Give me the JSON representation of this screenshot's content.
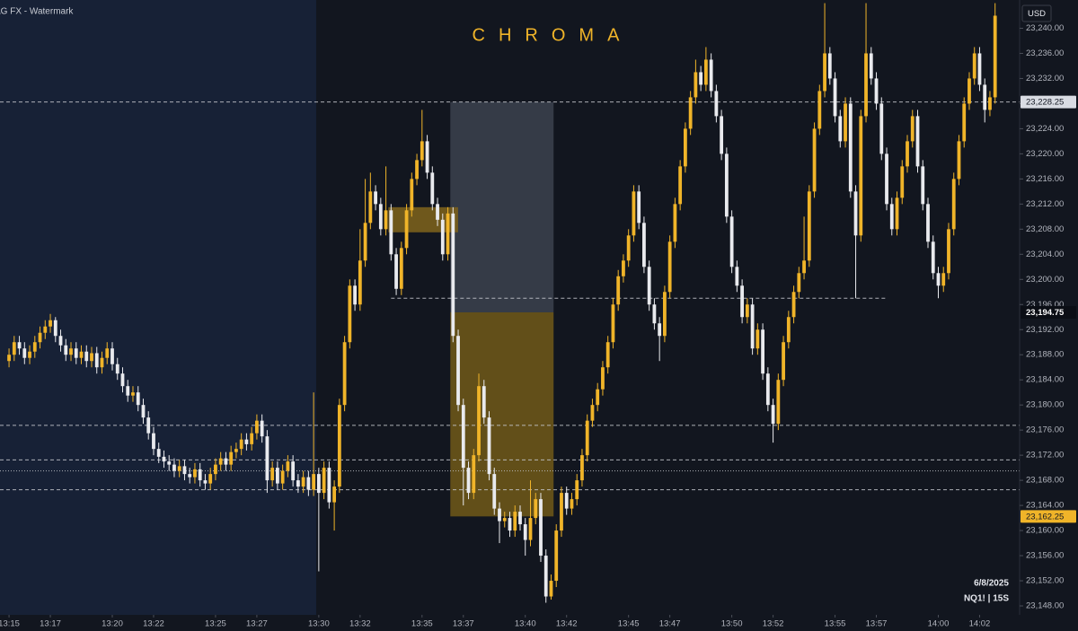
{
  "chart_data": {
    "type": "candlestick",
    "title": "CHROMA",
    "watermark": "AG FX - Watermark",
    "currency": "USD",
    "date": "6/8/2025",
    "symbol": "NQ1! | 15S",
    "bull_color": "#f0b429",
    "bear_color": "#e9eaee",
    "xlim": [
      -1.75,
      195.75
    ],
    "ylim": [
      23144,
      23244.5
    ],
    "xticks": [
      {
        "value": 0,
        "label": "13:15"
      },
      {
        "value": 8,
        "label": "13:17"
      },
      {
        "value": 20,
        "label": "13:20"
      },
      {
        "value": 28,
        "label": "13:22"
      },
      {
        "value": 40,
        "label": "13:25"
      },
      {
        "value": 48,
        "label": "13:27"
      },
      {
        "value": 60,
        "label": "13:30"
      },
      {
        "value": 68,
        "label": "13:32"
      },
      {
        "value": 80,
        "label": "13:35"
      },
      {
        "value": 88,
        "label": "13:37"
      },
      {
        "value": 100,
        "label": "13:40"
      },
      {
        "value": 108,
        "label": "13:42"
      },
      {
        "value": 120,
        "label": "13:45"
      },
      {
        "value": 128,
        "label": "13:47"
      },
      {
        "value": 140,
        "label": "13:50"
      },
      {
        "value": 148,
        "label": "13:52"
      },
      {
        "value": 160,
        "label": "13:55"
      },
      {
        "value": 168,
        "label": "13:57"
      },
      {
        "value": 180,
        "label": "14:00"
      },
      {
        "value": 188,
        "label": "14:02"
      }
    ],
    "yticks": [
      {
        "value": 23148,
        "label": "23,148.00"
      },
      {
        "value": 23152,
        "label": "23,152.00"
      },
      {
        "value": 23156,
        "label": "23,156.00"
      },
      {
        "value": 23160,
        "label": "23,160.00"
      },
      {
        "value": 23164,
        "label": "23,164.00"
      },
      {
        "value": 23168,
        "label": "23,168.00"
      },
      {
        "value": 23172,
        "label": "23,172.00"
      },
      {
        "value": 23176,
        "label": "23,176.00"
      },
      {
        "value": 23180,
        "label": "23,180.00"
      },
      {
        "value": 23184,
        "label": "23,184.00"
      },
      {
        "value": 23188,
        "label": "23,188.00"
      },
      {
        "value": 23192,
        "label": "23,192.00"
      },
      {
        "value": 23196,
        "label": "23,196.00"
      },
      {
        "value": 23200,
        "label": "23,200.00"
      },
      {
        "value": 23204,
        "label": "23,204.00"
      },
      {
        "value": 23208,
        "label": "23,208.00"
      },
      {
        "value": 23212,
        "label": "23,212.00"
      },
      {
        "value": 23216,
        "label": "23,216.00"
      },
      {
        "value": 23220,
        "label": "23,220.00"
      },
      {
        "value": 23224,
        "label": "23,224.00"
      },
      {
        "value": 23228,
        "label": "23,228.00"
      },
      {
        "value": 23232,
        "label": "23,232.00"
      },
      {
        "value": 23236,
        "label": "23,236.00"
      },
      {
        "value": 23240,
        "label": "23,240.00"
      }
    ],
    "session_shade": {
      "end": 59.5,
      "color": "#172136"
    },
    "zones": [
      {
        "from": 23228.25,
        "to": 23194.75,
        "start": 86,
        "end": 106,
        "color": "#3a3f4b"
      },
      {
        "from": 23194.75,
        "to": 23162.25,
        "start": 86,
        "end": 106,
        "color": "#6b5518"
      },
      {
        "from": 23211.5,
        "to": 23207.5,
        "start": 74,
        "end": 87.5,
        "color": "#7a5f1c"
      }
    ],
    "levels": [
      {
        "value": 23228.25,
        "style": "dashed"
      },
      {
        "value": 23176.75,
        "style": "dashed"
      },
      {
        "value": 23171.25,
        "style": "dashed"
      },
      {
        "value": 23169.5,
        "style": "dotted"
      },
      {
        "value": 23166.5,
        "style": "dashed"
      },
      {
        "value": 23197,
        "style": "dashed",
        "start": 74,
        "end": 170
      }
    ],
    "price_labels": [
      {
        "value": 23228.25,
        "label": "23,228.25",
        "color": "#d9dce3"
      },
      {
        "value": 23194.75,
        "label": "23,194.75",
        "color": "#0b0e15"
      },
      {
        "value": 23162.25,
        "label": "23,162.25",
        "color": "#f0b429"
      }
    ],
    "open": [
      23187,
      23188,
      23190,
      23189,
      23187.5,
      23188.5,
      23190,
      23191.5,
      23192.5,
      23193.5,
      23191,
      23189.5,
      23188,
      23189,
      23187.5,
      23188.5,
      23187,
      23188.25,
      23186,
      23187.5,
      23189,
      23186.5,
      23185,
      23183,
      23181.5,
      23182,
      23180,
      23178,
      23175.5,
      23173,
      23171.75,
      23171,
      23170.5,
      23169.5,
      23170.25,
      23169,
      23168.5,
      23169.75,
      23168,
      23167.5,
      23169,
      23170.5,
      23171.5,
      23170.5,
      23172.5,
      23173,
      23174.5,
      23173.75,
      23175.5,
      23177.5,
      23175,
      23168,
      23170,
      23167.5,
      23169.5,
      23171,
      23168,
      23167,
      23168.5,
      23166.5,
      23169,
      23166,
      23170,
      23164.5,
      23167,
      23180,
      23190,
      23199,
      23196,
      23203,
      23209,
      23214,
      23212,
      23208,
      23211,
      23204,
      23198.5,
      23205,
      23211,
      23216,
      23219,
      23222,
      23217,
      23212,
      23209.5,
      23204,
      23210.5,
      23191,
      23180,
      23170,
      23166,
      23172,
      23183,
      23178,
      23169,
      23163.5,
      23161.5,
      23162,
      23160,
      23163,
      23161,
      23158.5,
      23162,
      23165,
      23156,
      23149.5,
      23152,
      23160,
      23166,
      23163.5,
      23165,
      23168,
      23172,
      23177.5,
      23180,
      23182.5,
      23186,
      23190,
      23196,
      23200.5,
      23203,
      23207,
      23214,
      23209,
      23202,
      23196,
      23193,
      23191,
      23198,
      23206,
      23212,
      23218,
      23224,
      23229,
      23233,
      23231,
      23235,
      23230,
      23226,
      23220,
      23210,
      23202,
      23199,
      23194,
      23196,
      23189,
      23192,
      23185,
      23180,
      23177,
      23184,
      23190,
      23194,
      23198,
      23201,
      23203,
      23214,
      23224,
      23230,
      23236,
      23232,
      23226,
      23222,
      23228,
      23214,
      23207,
      23226,
      23236,
      23232,
      23228,
      23220,
      23212,
      23208,
      23213,
      23218,
      23222,
      23226,
      23218,
      23212,
      23206,
      23201,
      23199,
      23201,
      23208,
      23216,
      23222,
      23228,
      23232,
      23236,
      23231,
      23227,
      23229
    ],
    "high": [
      23189,
      23191,
      23191,
      23190,
      23189.5,
      23191,
      23192.5,
      23193.5,
      23194.5,
      23194,
      23192,
      23190.5,
      23190,
      23190,
      23189.5,
      23189.5,
      23189.25,
      23189.25,
      23188.5,
      23190,
      23190,
      23187.5,
      23186,
      23184,
      23183,
      23183,
      23181,
      23179,
      23176.5,
      23174,
      23172.75,
      23172,
      23171.5,
      23171.25,
      23171.25,
      23170,
      23170.75,
      23170.75,
      23169,
      23170,
      23171.5,
      23172.5,
      23172.5,
      23173.5,
      23174,
      23175.5,
      23175.5,
      23176.5,
      23178.5,
      23178.5,
      23176,
      23171,
      23171,
      23170.5,
      23172,
      23172,
      23169,
      23169.5,
      23169.5,
      23182,
      23170,
      23171,
      23171,
      23168,
      23181,
      23191,
      23200,
      23200,
      23208,
      23216,
      23217,
      23215,
      23213,
      23218,
      23212,
      23205,
      23206,
      23212,
      23217,
      23220,
      23227,
      23223,
      23218,
      23213,
      23210.5,
      23211.5,
      23211.5,
      23192,
      23181,
      23171,
      23173,
      23185,
      23184,
      23179,
      23170,
      23164.5,
      23163,
      23163,
      23164,
      23164,
      23162,
      23168,
      23166,
      23166,
      23157,
      23153,
      23161,
      23167,
      23167,
      23166,
      23169,
      23173,
      23178.5,
      23181,
      23183.5,
      23187,
      23191,
      23197,
      23201.5,
      23204,
      23208,
      23215,
      23215,
      23210,
      23203,
      23197,
      23194,
      23199,
      23207,
      23213,
      23219,
      23225,
      23230,
      23235,
      23234,
      23237,
      23236,
      23231,
      23227,
      23221,
      23211,
      23203,
      23200,
      23197,
      23197,
      23193,
      23193,
      23186,
      23181,
      23185,
      23191,
      23195,
      23199,
      23202,
      23210,
      23215,
      23225,
      23231,
      23244,
      23237,
      23233,
      23227,
      23229,
      23229,
      23215,
      23227,
      23244,
      23237,
      23233,
      23229,
      23221,
      23213,
      23214,
      23219,
      23223,
      23227,
      23227,
      23219,
      23213,
      23207,
      23202,
      23202,
      23209,
      23217,
      23223,
      23229,
      23233,
      23237,
      23237,
      23232,
      23230,
      23244
    ],
    "low": [
      23186,
      23187,
      23188,
      23186.5,
      23186.5,
      23187.5,
      23189,
      23190.5,
      23191.5,
      23190,
      23188.5,
      23187,
      23187,
      23186.5,
      23186.5,
      23186,
      23186,
      23185,
      23185,
      23186.5,
      23185.5,
      23184,
      23182,
      23180.5,
      23180.5,
      23179,
      23177,
      23174.5,
      23172,
      23170.75,
      23170,
      23169.5,
      23168.5,
      23168.5,
      23168,
      23167.5,
      23167.5,
      23167,
      23166.5,
      23166.5,
      23168,
      23169.5,
      23169.5,
      23169.5,
      23171.5,
      23172,
      23172.75,
      23172.75,
      23174.5,
      23174,
      23166,
      23167,
      23166.5,
      23166.5,
      23168.5,
      23167,
      23166,
      23166,
      23165.5,
      23165.5,
      23153.5,
      23165,
      23163.5,
      23160,
      23166,
      23179,
      23189,
      23195,
      23195,
      23202,
      23208,
      23211,
      23207,
      23207,
      23203,
      23197.5,
      23197.5,
      23204,
      23210,
      23215,
      23218,
      23216,
      23211,
      23208.5,
      23203,
      23203,
      23190,
      23179,
      23164,
      23165,
      23165,
      23171,
      23177,
      23168,
      23162.5,
      23158,
      23160.5,
      23159,
      23159,
      23160,
      23156,
      23157.5,
      23161,
      23155,
      23148.5,
      23149,
      23151,
      23159,
      23162.5,
      23162.5,
      23164,
      23167,
      23171,
      23176.5,
      23179,
      23181.5,
      23185,
      23189,
      23195,
      23199.5,
      23202,
      23206,
      23208,
      23201,
      23195,
      23192,
      23187,
      23190,
      23197,
      23205,
      23211,
      23217,
      23223,
      23228,
      23230,
      23230,
      23229,
      23225,
      23219,
      23209,
      23201,
      23198,
      23193,
      23193,
      23188,
      23188,
      23184,
      23179,
      23174,
      23176,
      23183,
      23189,
      23193,
      23197,
      23200,
      23202,
      23213,
      23223,
      23229,
      23231,
      23225,
      23221,
      23221,
      23213,
      23197,
      23206,
      23225,
      23231,
      23227,
      23219,
      23211,
      23207,
      23207,
      23212,
      23217,
      23221,
      23217,
      23211,
      23205,
      23200,
      23197,
      23198,
      23200,
      23207,
      23215,
      23221,
      23227,
      23231,
      23230,
      23225,
      23226,
      23228
    ],
    "close": [
      23188,
      23190,
      23189,
      23187.5,
      23188.5,
      23190,
      23191.5,
      23192.5,
      23193.5,
      23191,
      23189.5,
      23188,
      23189,
      23187.5,
      23188.5,
      23187,
      23188.25,
      23186,
      23187.5,
      23189,
      23186.5,
      23185,
      23183,
      23181.5,
      23182,
      23180,
      23178,
      23175.5,
      23173,
      23171.75,
      23171,
      23170.5,
      23169.5,
      23170.25,
      23169,
      23168.5,
      23169.75,
      23168,
      23167.5,
      23169,
      23170.5,
      23171.5,
      23170.5,
      23172.5,
      23173,
      23174.5,
      23173.75,
      23175.5,
      23177.5,
      23175,
      23168,
      23170,
      23167.5,
      23169.5,
      23171,
      23168,
      23167,
      23168.5,
      23166.5,
      23169,
      23166,
      23170,
      23164.5,
      23167,
      23180,
      23190,
      23199,
      23196,
      23203,
      23209,
      23214,
      23212,
      23208,
      23211,
      23204,
      23198.5,
      23205,
      23211,
      23216,
      23219,
      23222,
      23217,
      23212,
      23209.5,
      23204,
      23210.5,
      23191,
      23180,
      23170,
      23166,
      23172,
      23183,
      23178,
      23169,
      23163.5,
      23161.5,
      23162,
      23160,
      23163,
      23161,
      23158.5,
      23162,
      23165,
      23156,
      23149.5,
      23152,
      23160,
      23166,
      23163.5,
      23165,
      23168,
      23172,
      23177.5,
      23180,
      23182.5,
      23186,
      23190,
      23196,
      23200.5,
      23203,
      23207,
      23214,
      23209,
      23202,
      23196,
      23193,
      23191,
      23198,
      23206,
      23212,
      23218,
      23224,
      23229,
      23233,
      23231,
      23235,
      23230,
      23226,
      23220,
      23210,
      23202,
      23199,
      23194,
      23196,
      23189,
      23192,
      23185,
      23180,
      23177,
      23184,
      23190,
      23194,
      23198,
      23201,
      23203,
      23214,
      23224,
      23230,
      23236,
      23232,
      23226,
      23222,
      23228,
      23214,
      23207,
      23226,
      23236,
      23232,
      23228,
      23220,
      23212,
      23208,
      23213,
      23218,
      23222,
      23226,
      23218,
      23212,
      23206,
      23201,
      23199,
      23201,
      23208,
      23216,
      23222,
      23228,
      23232,
      23236,
      23231,
      23227,
      23229,
      23242
    ]
  }
}
